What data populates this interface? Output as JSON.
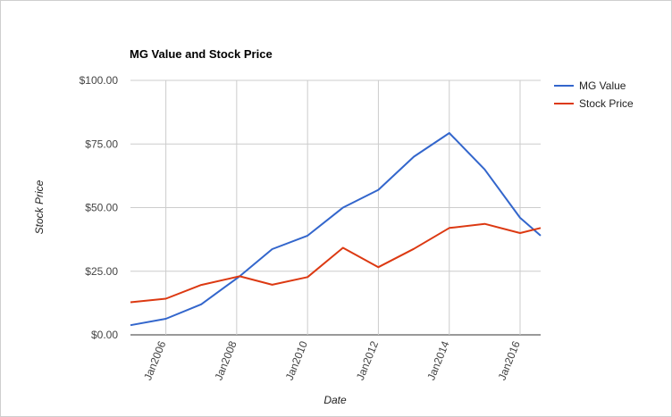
{
  "chart_data": {
    "type": "line",
    "title": "MG Value and Stock Price",
    "xlabel": "Date",
    "ylabel": "Stock Price",
    "ylim": [
      0,
      100
    ],
    "xlim": [
      "2005-01-01",
      "2016-07-31"
    ],
    "y_ticks": [
      "$0.00",
      "$25.00",
      "$50.00",
      "$75.00",
      "$100.00"
    ],
    "y_tick_values": [
      0,
      25,
      50,
      75,
      100
    ],
    "x_ticks": [
      "Jan2006",
      "Jan2008",
      "Jan2010",
      "Jan2012",
      "Jan2014",
      "Jan2016"
    ],
    "x_tick_values": [
      "2006-01-01",
      "2008-01-01",
      "2010-01-01",
      "2012-01-01",
      "2014-01-01",
      "2016-01-01"
    ],
    "grid": true,
    "legend_position": "right",
    "series": [
      {
        "name": "MG Value",
        "color": "#3366cc",
        "points": [
          [
            "2005-01-01",
            3.8
          ],
          [
            "2006-01-01",
            6.3
          ],
          [
            "2007-01-01",
            12.0
          ],
          [
            "2008-02-01",
            23.0
          ],
          [
            "2009-01-01",
            33.7
          ],
          [
            "2010-01-01",
            39.0
          ],
          [
            "2011-01-01",
            50.0
          ],
          [
            "2012-01-01",
            57.0
          ],
          [
            "2013-01-01",
            70.0
          ],
          [
            "2014-01-01",
            79.3
          ],
          [
            "2015-01-01",
            65.0
          ],
          [
            "2016-01-01",
            46.0
          ],
          [
            "2016-07-31",
            39.0
          ]
        ]
      },
      {
        "name": "Stock Price",
        "color": "#dc3912",
        "points": [
          [
            "2005-01-01",
            12.8
          ],
          [
            "2006-01-01",
            14.2
          ],
          [
            "2007-01-01",
            19.6
          ],
          [
            "2008-02-01",
            23.0
          ],
          [
            "2009-01-01",
            19.7
          ],
          [
            "2010-01-01",
            22.7
          ],
          [
            "2011-01-01",
            34.2
          ],
          [
            "2012-01-01",
            26.6
          ],
          [
            "2013-01-01",
            33.8
          ],
          [
            "2014-01-01",
            42.0
          ],
          [
            "2015-01-01",
            43.6
          ],
          [
            "2016-01-01",
            40.0
          ],
          [
            "2016-07-31",
            42.0
          ]
        ]
      }
    ]
  }
}
